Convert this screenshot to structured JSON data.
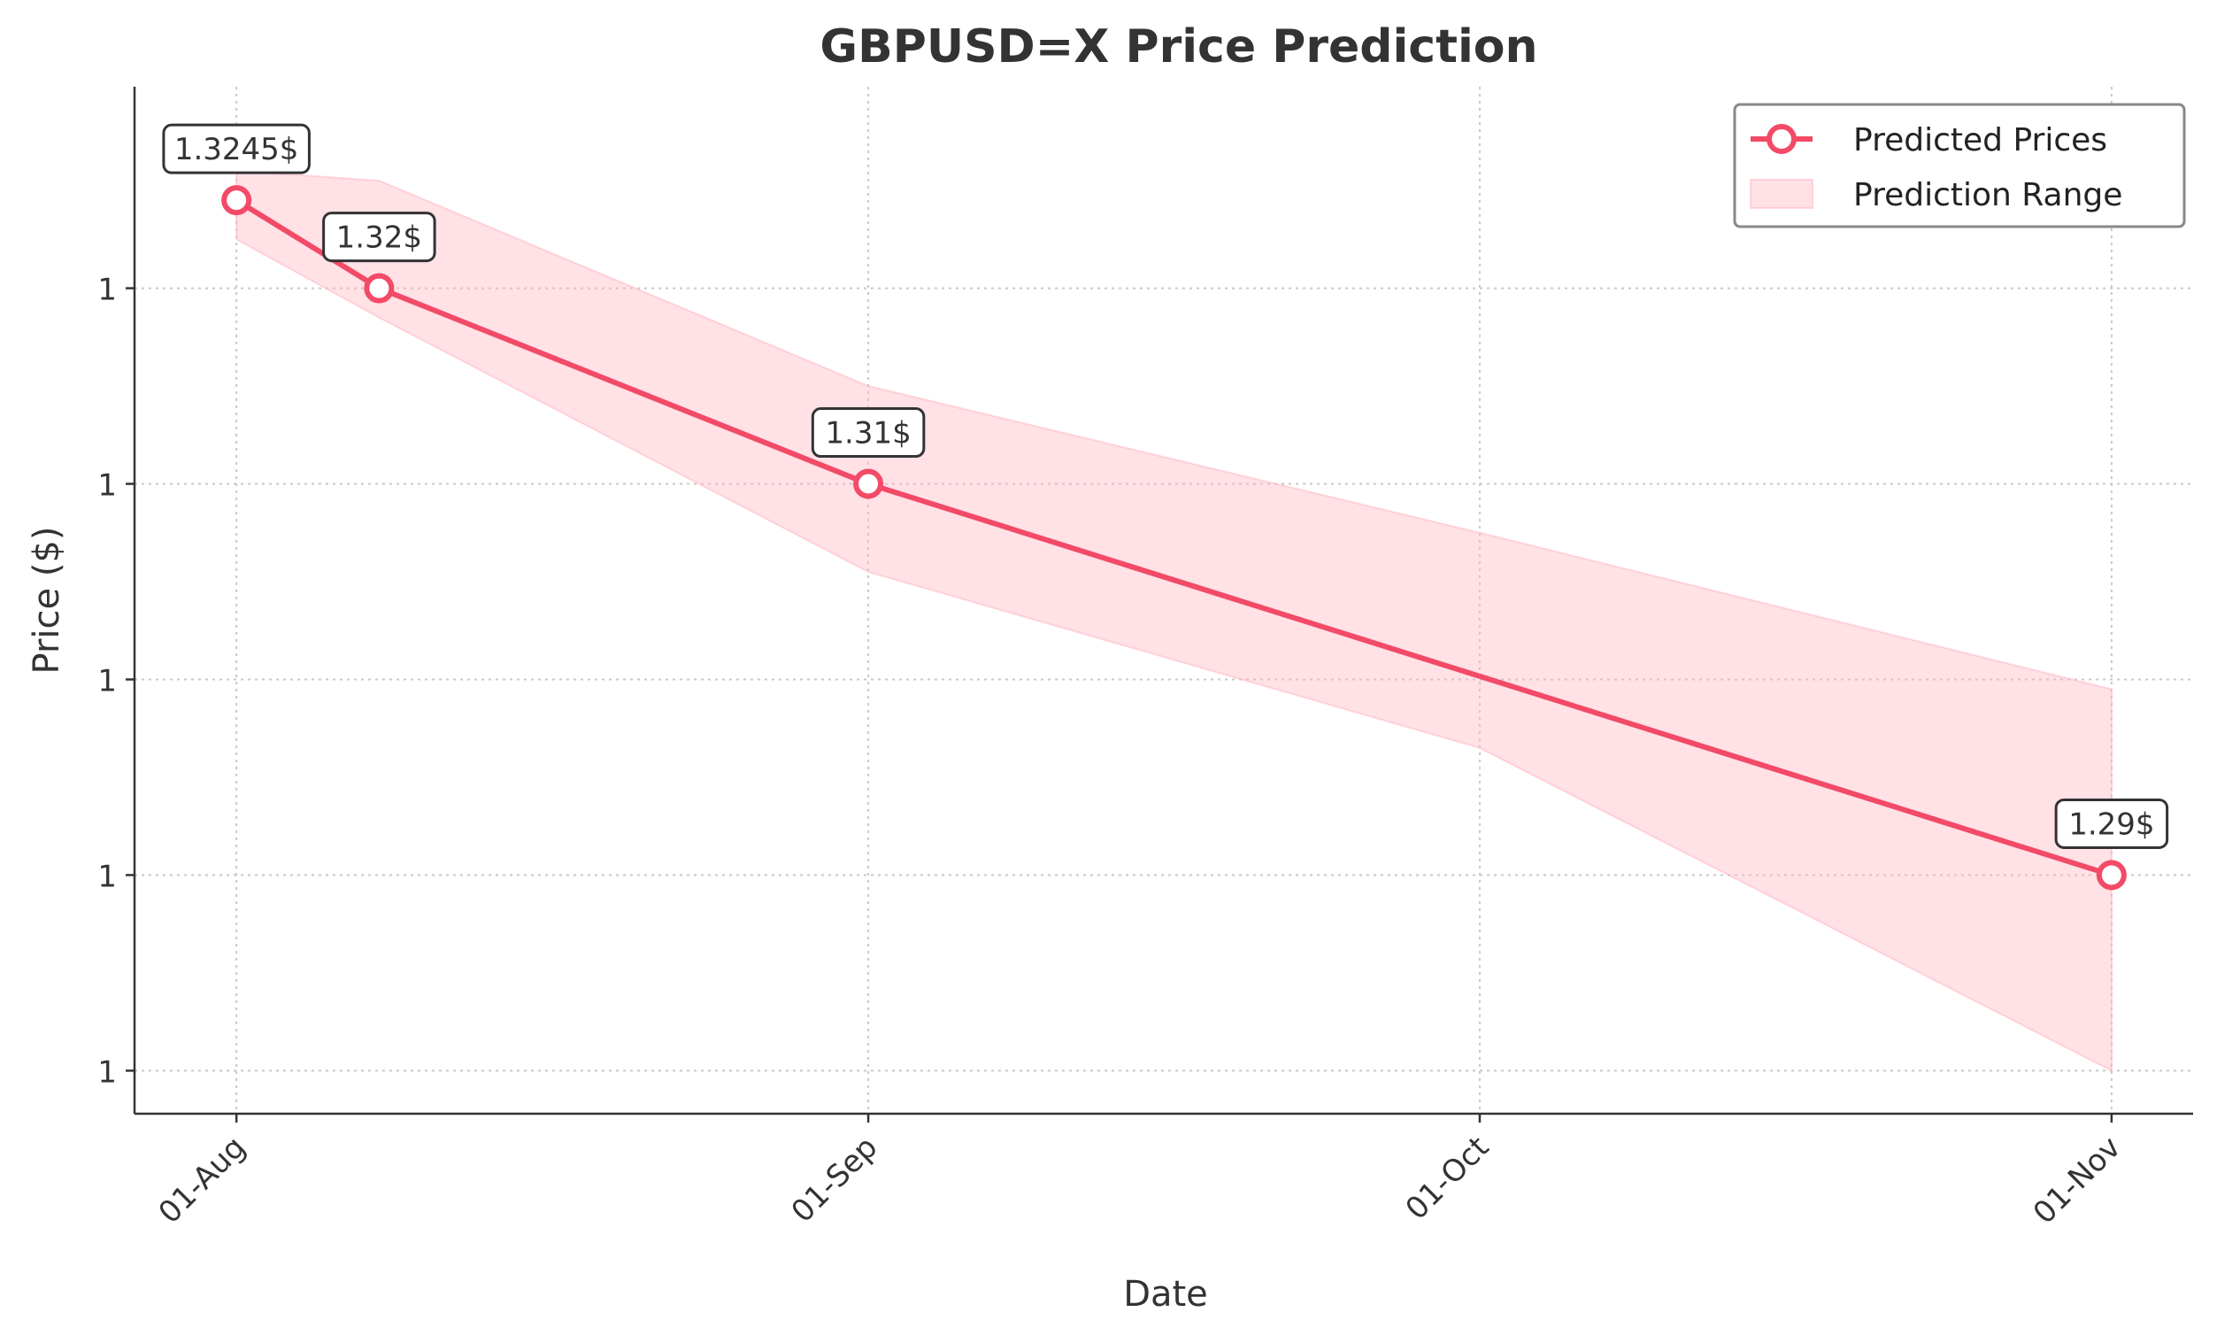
{
  "chart_data": {
    "type": "line",
    "title": "GBPUSD=X Price Prediction",
    "xlabel": "Date",
    "ylabel": "Price ($)",
    "x_tick_labels": [
      "01-Aug",
      "01-Sep",
      "01-Oct",
      "01-Nov"
    ],
    "x_tick_dates": [
      "2024-08-01",
      "2024-09-01",
      "2024-10-01",
      "2024-11-01"
    ],
    "y_tick_labels": [
      "1",
      "1",
      "1",
      "1",
      "1"
    ],
    "y_tick_values": [
      1.32,
      1.315,
      1.31,
      1.305,
      1.3,
      1.295,
      1.29,
      1.285
    ],
    "y_tick_display_values": [
      1.32,
      1.31,
      1.3,
      1.29,
      1.28
    ],
    "ylim": [
      1.2778,
      1.3303
    ],
    "xlim": [
      "2024-07-27",
      "2024-11-05"
    ],
    "grid": true,
    "legend_position": "top-right",
    "series": [
      {
        "name": "Predicted Prices",
        "color": "#f24a67",
        "x": [
          "2024-08-01",
          "2024-08-08",
          "2024-09-01",
          "2024-11-01"
        ],
        "y": [
          1.3245,
          1.32,
          1.31,
          1.29
        ]
      }
    ],
    "prediction_range": {
      "name": "Prediction Range",
      "color": "#ffb3c0",
      "x": [
        "2024-08-01",
        "2024-08-08",
        "2024-09-01",
        "2024-10-01",
        "2024-11-01"
      ],
      "upper": [
        1.326,
        1.3255,
        1.315,
        1.3075,
        1.2995
      ],
      "lower": [
        1.3225,
        1.3185,
        1.3055,
        1.2965,
        1.28
      ]
    },
    "annotations": [
      {
        "x": "2024-08-01",
        "y": 1.3245,
        "text": "1.3245$"
      },
      {
        "x": "2024-08-08",
        "y": 1.32,
        "text": "1.32$"
      },
      {
        "x": "2024-09-01",
        "y": 1.31,
        "text": "1.31$"
      },
      {
        "x": "2024-11-01",
        "y": 1.29,
        "text": "1.29$"
      }
    ]
  }
}
